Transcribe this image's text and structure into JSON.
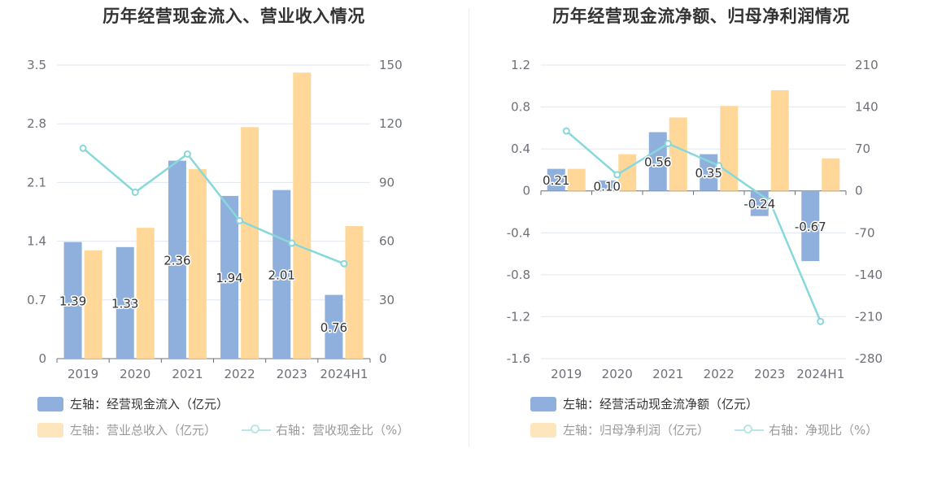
{
  "chart_data": [
    {
      "type": "bar",
      "title": "历年经营现金流入、营业收入情况",
      "categories": [
        "2019",
        "2020",
        "2021",
        "2022",
        "2023",
        "2024H1"
      ],
      "y_left": {
        "min": 0,
        "max": 3.5,
        "ticks": [
          "0",
          "0.7",
          "1.4",
          "2.1",
          "2.8",
          "3.5"
        ]
      },
      "y_right": {
        "min": 0,
        "max": 150,
        "ticks": [
          "0",
          "30",
          "60",
          "90",
          "120",
          "150"
        ]
      },
      "series": [
        {
          "name": "左轴：经营现金流入（亿元）",
          "kind": "bar",
          "axis": "left",
          "color": "#8fb0dc",
          "values": [
            1.39,
            1.33,
            2.36,
            1.94,
            2.01,
            0.76
          ],
          "labels": [
            "1.39",
            "1.33",
            "2.36",
            "1.94",
            "2.01",
            "0.76"
          ]
        },
        {
          "name": "左轴：营业总收入（亿元）",
          "kind": "bar",
          "axis": "left",
          "color": "#ffd899",
          "values": [
            1.29,
            1.56,
            2.26,
            2.76,
            3.41,
            1.58
          ]
        },
        {
          "name": "右轴：营收现金比（%）",
          "kind": "line",
          "axis": "right",
          "color": "#88d8db",
          "values": [
            107.5,
            85.0,
            104.5,
            70.5,
            59.0,
            48.5
          ]
        }
      ],
      "grid": true,
      "legend_position": "bottom-left"
    },
    {
      "type": "bar",
      "title": "历年经营现金流净额、归母净利润情况",
      "categories": [
        "2019",
        "2020",
        "2021",
        "2022",
        "2023",
        "2024H1"
      ],
      "y_left": {
        "min": -1.6,
        "max": 1.2,
        "ticks": [
          "-1.6",
          "-1.2",
          "-0.8",
          "-0.4",
          "0",
          "0.4",
          "0.8",
          "1.2"
        ]
      },
      "y_right": {
        "min": -280,
        "max": 210,
        "ticks": [
          "-280",
          "-210",
          "-140",
          "-70",
          "0",
          "70",
          "140",
          "210"
        ]
      },
      "series": [
        {
          "name": "左轴：经营活动现金流净额（亿元）",
          "kind": "bar",
          "axis": "left",
          "color": "#8fb0dc",
          "values": [
            0.21,
            0.1,
            0.56,
            0.35,
            -0.24,
            -0.67
          ],
          "labels": [
            "0.21",
            "0.10",
            "0.56",
            "0.35",
            "-0.24",
            "-0.67"
          ]
        },
        {
          "name": "左轴：归母净利润（亿元）",
          "kind": "bar",
          "axis": "left",
          "color": "#ffd899",
          "values": [
            0.21,
            0.35,
            0.7,
            0.81,
            0.96,
            0.31
          ]
        },
        {
          "name": "右轴：净现比（%）",
          "kind": "line",
          "axis": "right",
          "color": "#88d8db",
          "values": [
            100.0,
            27.0,
            79.0,
            42.0,
            -17.0,
            -218.0
          ]
        }
      ],
      "grid": true,
      "legend_position": "bottom-left"
    }
  ]
}
